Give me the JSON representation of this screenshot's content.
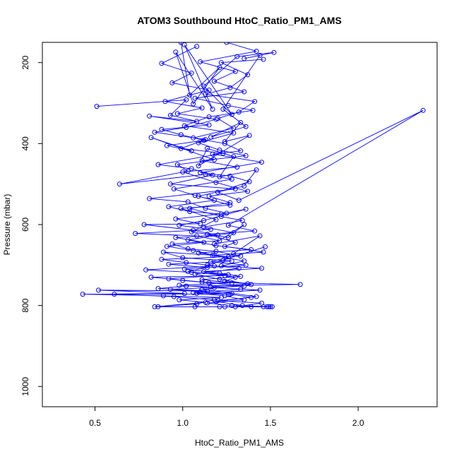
{
  "chart_data": {
    "type": "scatter",
    "mode": "lines+markers",
    "title": "ATOM3 Southbound HtoC_Ratio_PM1_AMS",
    "xlabel": "HtoC_Ratio_PM1_AMS",
    "ylabel": "Pressure (mbar)",
    "xlim": [
      0.2,
      2.45
    ],
    "ylim": [
      1050,
      150
    ],
    "y_reversed": true,
    "xticks": [
      0.5,
      1.0,
      1.5,
      2.0
    ],
    "xtick_labels": [
      "0.5",
      "1.0",
      "1.5",
      "2.0"
    ],
    "yticks": [
      200,
      400,
      600,
      800,
      1000
    ],
    "ytick_labels": [
      "200",
      "400",
      "600",
      "800",
      "1000"
    ],
    "grid": false,
    "legend": "none",
    "series_color": "#0000ff",
    "series": [
      {
        "points": [
          [
            0.99,
            150
          ],
          [
            1.04,
            280
          ],
          [
            1.21,
            212
          ],
          [
            1.06,
            302
          ],
          [
            0.96,
            174
          ],
          [
            1.17,
            315
          ],
          [
            1.01,
            156
          ],
          [
            1.28,
            328
          ],
          [
            1.12,
            258
          ],
          [
            1.31,
            185
          ],
          [
            1.52,
            175
          ],
          [
            1.35,
            190
          ],
          [
            1.44,
            182
          ],
          [
            1.23,
            315
          ],
          [
            1.36,
            358
          ],
          [
            1.16,
            384
          ],
          [
            1.33,
            348
          ],
          [
            1.24,
            395
          ],
          [
            1.38,
            380
          ],
          [
            1.09,
            455
          ],
          [
            1.14,
            412
          ],
          [
            1.29,
            432
          ],
          [
            1.21,
            482
          ],
          [
            1.42,
            465
          ],
          [
            1.35,
            505
          ],
          [
            1.09,
            530
          ],
          [
            1.27,
            552
          ],
          [
            0.99,
            560
          ],
          [
            1.19,
            588
          ],
          [
            1.05,
            618
          ],
          [
            1.26,
            632
          ],
          [
            1.35,
            600
          ],
          [
            1.18,
            648
          ],
          [
            1.44,
            628
          ],
          [
            1.29,
            672
          ],
          [
            1.23,
            688
          ],
          [
            1.47,
            655
          ],
          [
            1.14,
            700
          ],
          [
            1.32,
            708
          ],
          [
            1.07,
            722
          ],
          [
            1.21,
            735
          ],
          [
            1.39,
            748
          ],
          [
            1.11,
            760
          ],
          [
            1.28,
            770
          ],
          [
            1.42,
            778
          ],
          [
            1.19,
            790
          ],
          [
            1.34,
            800
          ],
          [
            1.48,
            803
          ]
        ]
      },
      {
        "points": [
          [
            0.51,
            308
          ],
          [
            1.02,
            292
          ],
          [
            0.93,
            330
          ],
          [
            1.08,
            345
          ],
          [
            0.81,
            332
          ],
          [
            1.15,
            354
          ],
          [
            0.88,
            365
          ],
          [
            0.99,
            378
          ],
          [
            1.12,
            392
          ],
          [
            0.91,
            405
          ],
          [
            1.05,
            418
          ],
          [
            0.82,
            385
          ],
          [
            1.18,
            440
          ],
          [
            0.97,
            452
          ],
          [
            1.03,
            468
          ],
          [
            0.64,
            500
          ],
          [
            1.13,
            476
          ],
          [
            1.28,
            488
          ],
          [
            0.95,
            512
          ],
          [
            1.07,
            528
          ],
          [
            1.18,
            540
          ],
          [
            0.92,
            556
          ],
          [
            1.04,
            568
          ],
          [
            1.22,
            574
          ],
          [
            1.36,
            562
          ],
          [
            1.12,
            590
          ],
          [
            0.98,
            602
          ],
          [
            1.16,
            612
          ],
          [
            0.73,
            622
          ],
          [
            1.08,
            628
          ],
          [
            1.21,
            640
          ],
          [
            0.94,
            648
          ],
          [
            1.03,
            660
          ],
          [
            1.19,
            666
          ],
          [
            1.33,
            678
          ],
          [
            0.88,
            686
          ],
          [
            1.02,
            694
          ],
          [
            1.18,
            702
          ],
          [
            0.79,
            712
          ],
          [
            1.05,
            718
          ],
          [
            1.26,
            724
          ],
          [
            0.92,
            734
          ],
          [
            1.11,
            742
          ],
          [
            1.67,
            748
          ],
          [
            1.02,
            752
          ],
          [
            0.86,
            758
          ],
          [
            1.14,
            764
          ],
          [
            0.52,
            762
          ],
          [
            1.01,
            770
          ],
          [
            0.43,
            772
          ],
          [
            0.89,
            776
          ],
          [
            1.22,
            780
          ],
          [
            0.98,
            786
          ],
          [
            1.13,
            792
          ],
          [
            0.84,
            803
          ],
          [
            1.07,
            803
          ],
          [
            1.24,
            803
          ],
          [
            1.39,
            803
          ],
          [
            1.51,
            803
          ]
        ]
      },
      {
        "points": [
          [
            1.46,
            192
          ],
          [
            1.22,
            200
          ],
          [
            1.37,
            230
          ],
          [
            1.27,
            262
          ],
          [
            1.13,
            278
          ],
          [
            1.41,
            296
          ],
          [
            1.32,
            322
          ],
          [
            1.2,
            338
          ],
          [
            1.29,
            362
          ],
          [
            1.06,
            386
          ],
          [
            1.24,
            400
          ],
          [
            1.33,
            418
          ],
          [
            1.17,
            426
          ],
          [
            1.45,
            446
          ],
          [
            1.1,
            472
          ],
          [
            1.27,
            480
          ],
          [
            1.38,
            494
          ],
          [
            1.2,
            520
          ],
          [
            1.32,
            540
          ],
          [
            2.37,
            318
          ],
          [
            1.26,
            602
          ],
          [
            1.41,
            616
          ],
          [
            1.14,
            624
          ],
          [
            1.3,
            644
          ],
          [
            1.24,
            654
          ],
          [
            1.46,
            668
          ],
          [
            1.17,
            676
          ],
          [
            1.35,
            690
          ],
          [
            1.22,
            702
          ],
          [
            1.45,
            708
          ],
          [
            1.12,
            716
          ],
          [
            1.3,
            730
          ],
          [
            1.24,
            740
          ],
          [
            1.37,
            746
          ],
          [
            1.16,
            754
          ],
          [
            1.33,
            760
          ],
          [
            1.06,
            768
          ],
          [
            1.27,
            772
          ],
          [
            1.39,
            780
          ],
          [
            1.2,
            788
          ],
          [
            1.45,
            794
          ],
          [
            1.3,
            803
          ],
          [
            1.49,
            803
          ]
        ]
      },
      {
        "points": [
          [
            1.08,
            160
          ],
          [
            0.88,
            202
          ],
          [
            1.05,
            226
          ],
          [
            0.94,
            250
          ],
          [
            1.15,
            268
          ],
          [
            0.9,
            296
          ],
          [
            1.11,
            312
          ],
          [
            0.97,
            326
          ],
          [
            1.19,
            340
          ],
          [
            1.02,
            360
          ],
          [
            0.84,
            372
          ],
          [
            1.13,
            390
          ],
          [
            0.99,
            412
          ],
          [
            1.23,
            424
          ],
          [
            0.86,
            452
          ],
          [
            1.05,
            462
          ],
          [
            1.17,
            478
          ],
          [
            0.93,
            500
          ],
          [
            1.3,
            512
          ],
          [
            0.81,
            536
          ],
          [
            1.03,
            544
          ],
          [
            1.13,
            560
          ],
          [
            1.25,
            572
          ],
          [
            0.96,
            586
          ],
          [
            1.1,
            598
          ],
          [
            0.78,
            600
          ],
          [
            1.06,
            614
          ],
          [
            1.2,
            626
          ],
          [
            0.96,
            632
          ],
          [
            1.12,
            644
          ],
          [
            0.91,
            654
          ],
          [
            1.06,
            664
          ],
          [
            1.18,
            676
          ],
          [
            0.89,
            668
          ],
          [
            1.0,
            682
          ],
          [
            1.28,
            690
          ],
          [
            0.92,
            698
          ],
          [
            1.14,
            706
          ],
          [
            1.03,
            716
          ],
          [
            1.24,
            726
          ],
          [
            0.82,
            730
          ],
          [
            1.0,
            738
          ],
          [
            1.15,
            744
          ],
          [
            1.35,
            752
          ],
          [
            0.93,
            760
          ],
          [
            1.1,
            766
          ],
          [
            1.26,
            772
          ],
          [
            0.61,
            772
          ],
          [
            0.95,
            778
          ],
          [
            1.18,
            786
          ],
          [
            1.08,
            796
          ],
          [
            0.86,
            803
          ],
          [
            1.21,
            803
          ],
          [
            1.46,
            803
          ]
        ]
      },
      {
        "points": [
          [
            1.25,
            150
          ],
          [
            1.42,
            172
          ],
          [
            1.1,
            198
          ],
          [
            1.3,
            222
          ],
          [
            1.18,
            246
          ],
          [
            1.35,
            272
          ],
          [
            1.07,
            288
          ],
          [
            1.26,
            306
          ],
          [
            1.4,
            318
          ],
          [
            1.15,
            334
          ],
          [
            1.01,
            356
          ],
          [
            1.29,
            374
          ],
          [
            1.09,
            398
          ],
          [
            1.21,
            416
          ],
          [
            1.36,
            430
          ],
          [
            1.11,
            442
          ],
          [
            1.31,
            458
          ],
          [
            1.0,
            470
          ],
          [
            1.19,
            496
          ],
          [
            1.37,
            518
          ],
          [
            1.15,
            530
          ],
          [
            1.27,
            546
          ],
          [
            1.04,
            560
          ],
          [
            1.22,
            580
          ],
          [
            1.34,
            590
          ],
          [
            1.12,
            606
          ],
          [
            1.29,
            620
          ],
          [
            1.03,
            638
          ],
          [
            1.19,
            652
          ],
          [
            1.39,
            662
          ],
          [
            1.09,
            670
          ],
          [
            1.26,
            680
          ],
          [
            1.16,
            692
          ],
          [
            1.36,
            700
          ],
          [
            1.01,
            710
          ],
          [
            1.21,
            720
          ],
          [
            1.33,
            728
          ],
          [
            1.11,
            736
          ],
          [
            1.28,
            744
          ],
          [
            0.98,
            750
          ],
          [
            1.18,
            756
          ],
          [
            1.44,
            762
          ],
          [
            1.08,
            770
          ],
          [
            1.24,
            776
          ],
          [
            1.35,
            786
          ],
          [
            1.14,
            794
          ],
          [
            1.28,
            800
          ],
          [
            1.5,
            803
          ]
        ]
      }
    ]
  }
}
